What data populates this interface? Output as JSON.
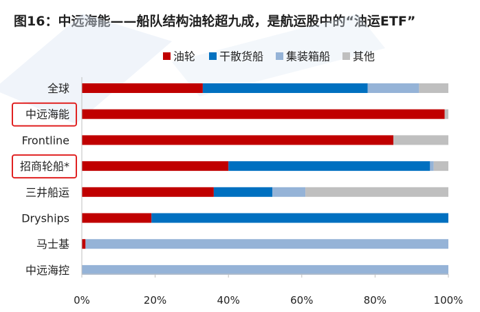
{
  "title": "图16：中远海能——船队结构油轮超九成，是航运股中的“油运ETF”",
  "colors": {
    "highlight_box": "#e02020",
    "axis": "#bfbfbf",
    "watermark": "#dde7f3"
  },
  "chart_data": {
    "type": "bar",
    "orientation": "horizontal",
    "stacked": true,
    "percent": true,
    "title": "图16：中远海能——船队结构油轮超九成，是航运股中的“油运ETF”",
    "categories": [
      "全球",
      "中远海能",
      "Frontline",
      "招商轮船*",
      "三井船运",
      "Dryships",
      "马士基",
      "中远海控"
    ],
    "highlighted_categories": [
      "中远海能",
      "招商轮船*"
    ],
    "series": [
      {
        "name": "油轮",
        "color": "#c00000",
        "values": [
          33,
          99,
          85,
          40,
          36,
          19,
          1,
          0
        ]
      },
      {
        "name": "干散货船",
        "color": "#0070c0",
        "values": [
          45,
          0,
          0,
          55,
          16,
          81,
          0,
          0
        ]
      },
      {
        "name": "集装箱船",
        "color": "#95b3d7",
        "values": [
          14,
          0,
          0,
          1,
          9,
          0,
          99,
          100
        ]
      },
      {
        "name": "其他",
        "color": "#bfbfbf",
        "values": [
          8,
          1,
          15,
          4,
          39,
          0,
          0,
          0
        ]
      }
    ],
    "xlim": [
      0,
      100
    ],
    "xticks": [
      "0%",
      "20%",
      "40%",
      "60%",
      "80%",
      "100%"
    ],
    "legend_position": "top",
    "grid": false
  }
}
